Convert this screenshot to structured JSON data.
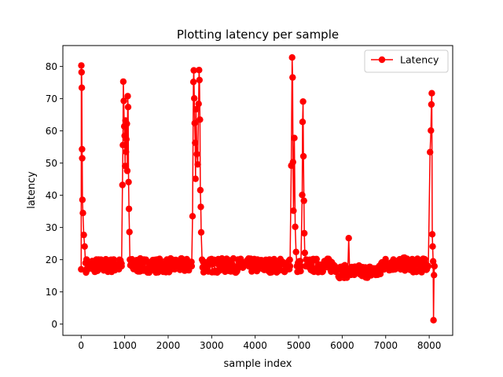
{
  "chart_data": {
    "type": "line",
    "title": "Plotting latency per sample",
    "xlabel": "sample index",
    "ylabel": "latency",
    "xlim": [
      -420,
      8540
    ],
    "ylim": [
      -3.5,
      86.5
    ],
    "xticks": [
      0,
      1000,
      2000,
      3000,
      4000,
      5000,
      6000,
      7000,
      8000
    ],
    "yticks": [
      0,
      10,
      20,
      30,
      40,
      50,
      60,
      70,
      80
    ],
    "grid": false,
    "legend_position": "top-right",
    "series": [
      {
        "name": "Latency",
        "color": "#ff0000",
        "marker": "circle",
        "spikes": [
          {
            "x": [
              0,
              5,
              10,
              15,
              20,
              25,
              30,
              40,
              60,
              80,
              100
            ],
            "y": [
              17,
              80.3,
              78.2,
              73.4,
              54.3,
              51.5,
              38.6,
              34.5,
              27.7,
              24.1,
              19
            ]
          },
          {
            "x": [
              930,
              950,
              960,
              970,
              980,
              990,
              1000,
              1010,
              1020,
              1030,
              1040,
              1050,
              1060,
              1070,
              1080,
              1090,
              1100,
              1110,
              1120
            ],
            "y": [
              18,
              43.2,
              55.6,
              75.3,
              69.3,
              61.4,
              58.5,
              49.1,
              63.2,
              53.5,
              57.4,
              62.2,
              47.6,
              70.8,
              67.4,
              44.1,
              35.8,
              28.6,
              20
            ]
          },
          {
            "x": [
              2540,
              2560,
              2580,
              2590,
              2600,
              2610,
              2620,
              2630,
              2640,
              2660,
              2680,
              2700,
              2710,
              2720,
              2730,
              2740,
              2750,
              2760,
              2780
            ],
            "y": [
              18,
              33.5,
              75.2,
              78.8,
              70.1,
              62.4,
              56.3,
              45.1,
              66.7,
              52.8,
              49.6,
              68.4,
              78.9,
              75.8,
              63.5,
              41.6,
              36.4,
              28.5,
              20
            ]
          },
          {
            "x": [
              4800,
              4830,
              4850,
              4860,
              4870,
              4880,
              4900,
              4920,
              4940,
              4960
            ],
            "y": [
              18,
              49.2,
              82.8,
              76.6,
              50.3,
              35.2,
              57.8,
              30.2,
              22.4,
              18
            ]
          },
          {
            "x": [
              5050,
              5080,
              5090,
              5100,
              5110,
              5120,
              5130,
              5140,
              5160
            ],
            "y": [
              18,
              40.1,
              62.8,
              69.1,
              52.1,
              38.3,
              28.2,
              22.1,
              18
            ]
          },
          {
            "x": [
              6130,
              6150,
              6170
            ],
            "y": [
              17,
              26.7,
              17
            ]
          },
          {
            "x": [
              7980,
              8020,
              8040,
              8050,
              8060,
              8070,
              8080,
              8090,
              8100,
              8110,
              8120
            ],
            "y": [
              18,
              53.4,
              60.1,
              68.2,
              71.7,
              27.9,
              24.1,
              19.5,
              1.2,
              15.2,
              18
            ]
          }
        ]
      }
    ]
  }
}
